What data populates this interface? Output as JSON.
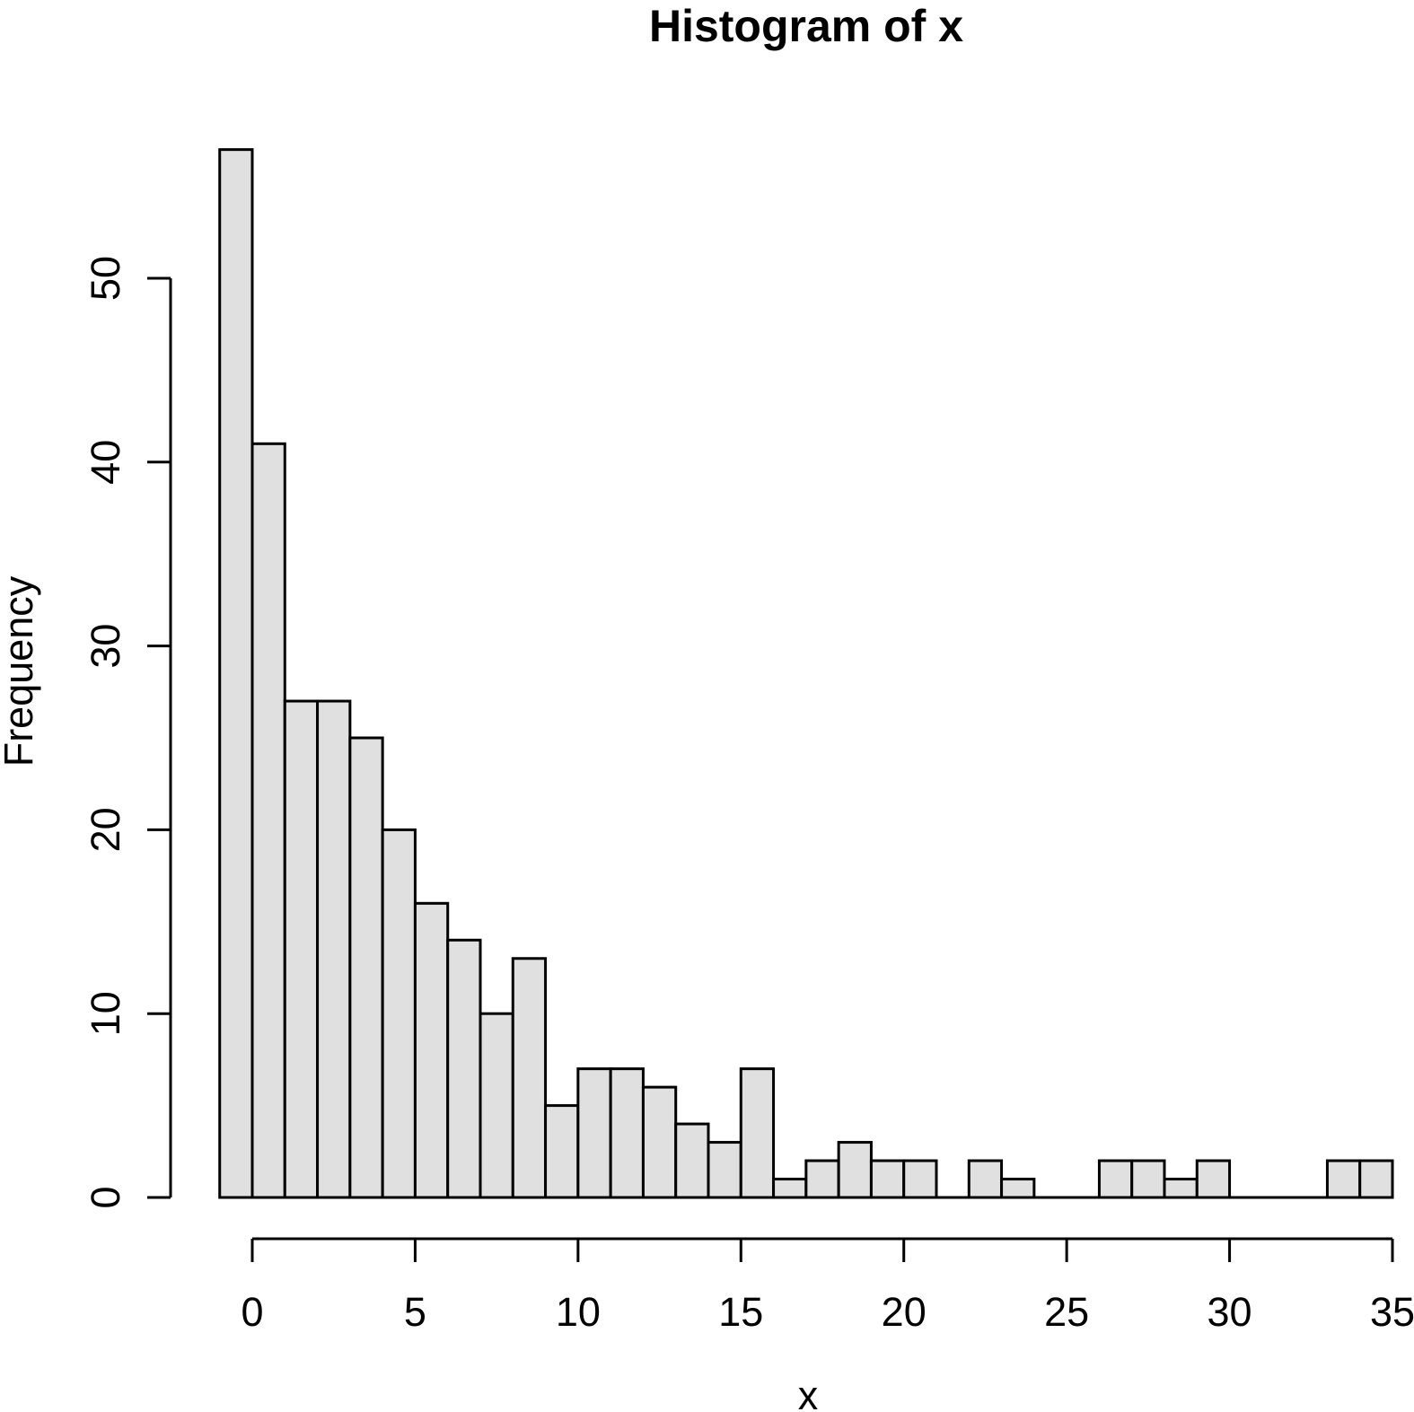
{
  "chart_data": {
    "type": "bar",
    "subtype": "histogram",
    "title": "Histogram of x",
    "xlabel": "x",
    "ylabel": "Frequency",
    "bin_start": -1,
    "bin_width": 1,
    "counts": [
      57,
      41,
      27,
      27,
      25,
      20,
      16,
      14,
      10,
      13,
      5,
      7,
      7,
      6,
      4,
      3,
      7,
      1,
      2,
      3,
      2,
      2,
      0,
      2,
      1,
      0,
      0,
      2,
      2,
      1,
      2,
      0,
      0,
      0,
      2,
      2
    ],
    "x_ticks": [
      0,
      5,
      10,
      15,
      20,
      25,
      30,
      35
    ],
    "y_ticks": [
      0,
      10,
      20,
      30,
      40,
      50
    ],
    "xlim": [
      -1,
      35
    ],
    "ylim": [
      0,
      57
    ],
    "grid": false,
    "legend": "none",
    "colors": {
      "bar_fill": "#e0e0e0",
      "bar_border": "#000000",
      "axis": "#000000",
      "text": "#000000",
      "background": "#ffffff"
    }
  }
}
